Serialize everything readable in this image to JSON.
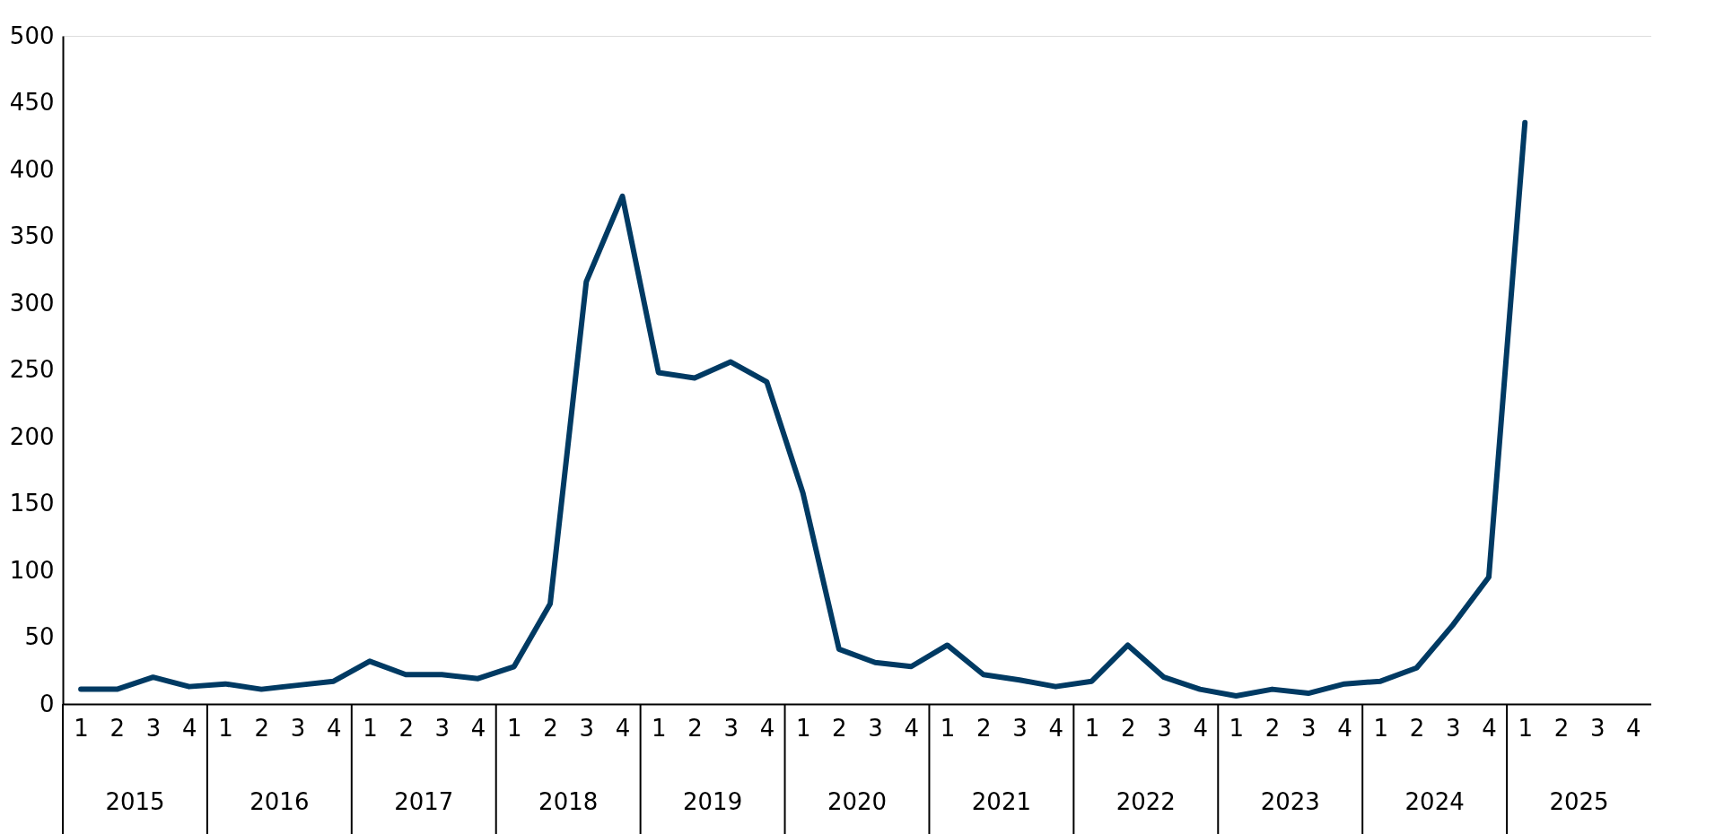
{
  "chart_data": {
    "type": "line",
    "categories": [
      "1",
      "2",
      "3",
      "4",
      "1",
      "2",
      "3",
      "4",
      "1",
      "2",
      "3",
      "4",
      "1",
      "2",
      "3",
      "4",
      "1",
      "2",
      "3",
      "4",
      "1",
      "2",
      "3",
      "4",
      "1",
      "2",
      "3",
      "4",
      "1",
      "2",
      "3",
      "4",
      "1",
      "2",
      "3",
      "4",
      "1",
      "2",
      "3",
      "4",
      "1",
      "2",
      "3",
      "4"
    ],
    "values": [
      11,
      11,
      20,
      13,
      15,
      11,
      14,
      17,
      32,
      22,
      22,
      19,
      28,
      75,
      316,
      380,
      248,
      244,
      256,
      241,
      158,
      41,
      31,
      28,
      44,
      22,
      18,
      13,
      17,
      44,
      20,
      11,
      6,
      11,
      8,
      15,
      17,
      27,
      59,
      95,
      435,
      null,
      null,
      null
    ],
    "color": "#003a63",
    "ylim": [
      0,
      500
    ],
    "yticks": [
      0,
      50,
      100,
      150,
      200,
      250,
      300,
      350,
      400,
      450,
      500
    ],
    "grid": false,
    "annotations": [
      "2015",
      "2016",
      "2017",
      "2018",
      "2019",
      "2020",
      "2021",
      "2022",
      "2023",
      "2024",
      "2025"
    ]
  }
}
